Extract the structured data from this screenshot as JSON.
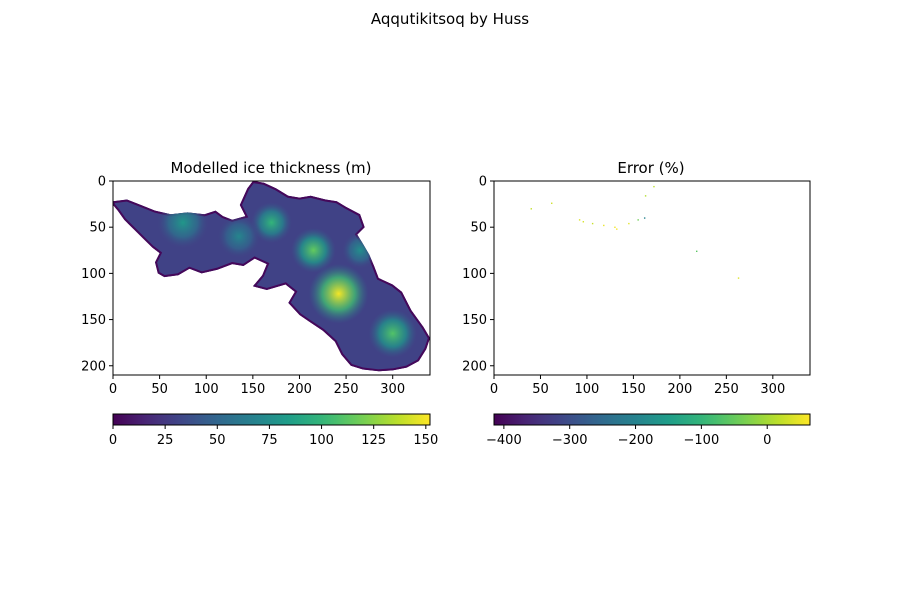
{
  "figure": {
    "title": "Aqqutikitsoq by Huss"
  },
  "chart_data": [
    {
      "type": "heatmap",
      "title": "Modelled ice thickness (m)",
      "xlim": [
        0,
        340
      ],
      "ylim": [
        210,
        0
      ],
      "x_ticks": [
        0,
        50,
        100,
        150,
        200,
        250,
        300
      ],
      "y_ticks": [
        0,
        50,
        100,
        150,
        200
      ],
      "x_tick_labels": [
        "0",
        "50",
        "100",
        "150",
        "200",
        "250",
        "300"
      ],
      "y_tick_labels": [
        "0",
        "50",
        "100",
        "150",
        "200"
      ],
      "colormap": "viridis",
      "colorbar": {
        "range": [
          0,
          152
        ],
        "ticks": [
          0,
          25,
          50,
          75,
          100,
          125,
          150
        ],
        "tick_labels": [
          "0",
          "25",
          "50",
          "75",
          "100",
          "125",
          "150"
        ],
        "orientation": "horizontal",
        "placement": "below"
      },
      "glacier_outline": [
        [
          0,
          22
        ],
        [
          15,
          20
        ],
        [
          30,
          26
        ],
        [
          45,
          32
        ],
        [
          62,
          36
        ],
        [
          80,
          34
        ],
        [
          98,
          36
        ],
        [
          110,
          32
        ],
        [
          118,
          38
        ],
        [
          128,
          42
        ],
        [
          142,
          38
        ],
        [
          136,
          26
        ],
        [
          144,
          8
        ],
        [
          150,
          0
        ],
        [
          162,
          2
        ],
        [
          175,
          8
        ],
        [
          188,
          16
        ],
        [
          200,
          18
        ],
        [
          212,
          16
        ],
        [
          228,
          20
        ],
        [
          240,
          22
        ],
        [
          250,
          28
        ],
        [
          265,
          36
        ],
        [
          270,
          50
        ],
        [
          262,
          58
        ],
        [
          268,
          68
        ],
        [
          275,
          80
        ],
        [
          280,
          92
        ],
        [
          285,
          105
        ],
        [
          300,
          112
        ],
        [
          310,
          120
        ],
        [
          320,
          140
        ],
        [
          333,
          158
        ],
        [
          340,
          170
        ],
        [
          336,
          182
        ],
        [
          328,
          195
        ],
        [
          315,
          202
        ],
        [
          300,
          205
        ],
        [
          285,
          206
        ],
        [
          268,
          204
        ],
        [
          255,
          200
        ],
        [
          245,
          188
        ],
        [
          238,
          174
        ],
        [
          225,
          162
        ],
        [
          210,
          152
        ],
        [
          200,
          145
        ],
        [
          188,
          132
        ],
        [
          195,
          120
        ],
        [
          185,
          112
        ],
        [
          165,
          118
        ],
        [
          150,
          114
        ],
        [
          160,
          102
        ],
        [
          165,
          90
        ],
        [
          152,
          84
        ],
        [
          140,
          92
        ],
        [
          128,
          90
        ],
        [
          112,
          96
        ],
        [
          95,
          100
        ],
        [
          82,
          95
        ],
        [
          70,
          102
        ],
        [
          55,
          104
        ],
        [
          48,
          100
        ],
        [
          45,
          88
        ],
        [
          50,
          78
        ],
        [
          42,
          72
        ],
        [
          32,
          62
        ],
        [
          22,
          52
        ],
        [
          12,
          42
        ],
        [
          5,
          32
        ],
        [
          0,
          26
        ]
      ],
      "thickness_peaks": [
        {
          "x": 242,
          "y": 122,
          "value": 150,
          "radius": 32
        },
        {
          "x": 215,
          "y": 75,
          "value": 115,
          "radius": 24
        },
        {
          "x": 170,
          "y": 45,
          "value": 100,
          "radius": 22
        },
        {
          "x": 300,
          "y": 165,
          "value": 110,
          "radius": 26
        },
        {
          "x": 75,
          "y": 45,
          "value": 80,
          "radius": 28
        },
        {
          "x": 135,
          "y": 60,
          "value": 70,
          "radius": 24
        },
        {
          "x": 265,
          "y": 75,
          "value": 75,
          "radius": 20
        }
      ]
    },
    {
      "type": "heatmap",
      "title": "Error (%)",
      "xlim": [
        0,
        340
      ],
      "ylim": [
        210,
        0
      ],
      "x_ticks": [
        0,
        50,
        100,
        150,
        200,
        250,
        300
      ],
      "y_ticks": [
        0,
        50,
        100,
        150,
        200
      ],
      "x_tick_labels": [
        "0",
        "50",
        "100",
        "150",
        "200",
        "250",
        "300"
      ],
      "y_tick_labels": [
        "0",
        "50",
        "100",
        "150",
        "200"
      ],
      "colormap": "viridis",
      "colorbar": {
        "range": [
          -415,
          65
        ],
        "ticks": [
          -400,
          -300,
          -200,
          -100,
          0
        ],
        "tick_labels": [
          "−400",
          "−300",
          "−200",
          "−100",
          "0"
        ],
        "orientation": "horizontal",
        "placement": "below"
      },
      "points": [
        {
          "x": 40,
          "y": 30,
          "value": 20
        },
        {
          "x": 62,
          "y": 24,
          "value": 30
        },
        {
          "x": 92,
          "y": 42,
          "value": 40
        },
        {
          "x": 96,
          "y": 44,
          "value": 35
        },
        {
          "x": 106,
          "y": 46,
          "value": 25
        },
        {
          "x": 118,
          "y": 48,
          "value": 50
        },
        {
          "x": 130,
          "y": 50,
          "value": 55
        },
        {
          "x": 132,
          "y": 52,
          "value": 60
        },
        {
          "x": 145,
          "y": 46,
          "value": 45
        },
        {
          "x": 155,
          "y": 42,
          "value": -40
        },
        {
          "x": 162,
          "y": 40,
          "value": -200
        },
        {
          "x": 163,
          "y": 16,
          "value": 10
        },
        {
          "x": 172,
          "y": 6,
          "value": 15
        },
        {
          "x": 218,
          "y": 76,
          "value": -60
        },
        {
          "x": 263,
          "y": 105,
          "value": 40
        }
      ]
    }
  ]
}
